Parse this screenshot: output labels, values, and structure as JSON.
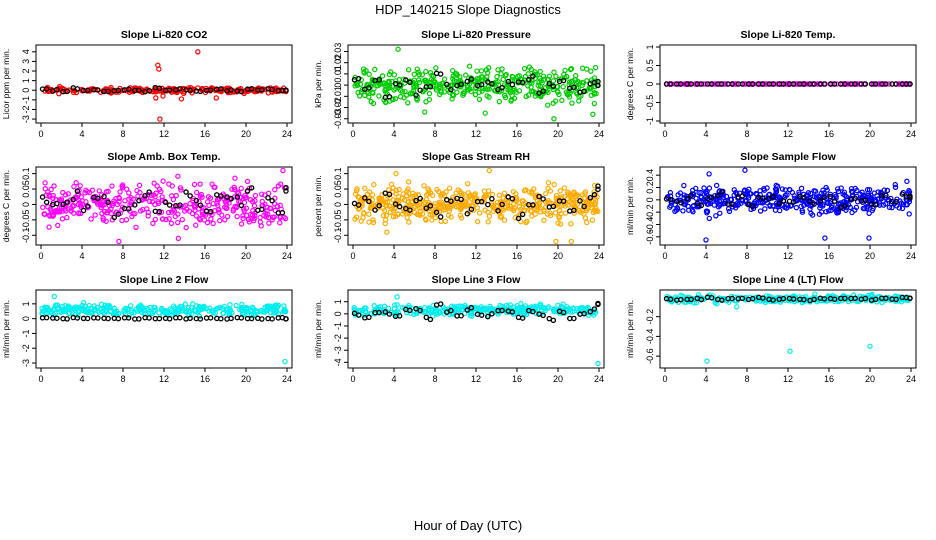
{
  "figure": {
    "title": "HDP_140215  Slope Diagnostics",
    "xlabel": "Hour of Day (UTC)"
  },
  "chart_data": [
    {
      "type": "scatter",
      "title": "Slope Li-820 CO2",
      "ylabel": "Licor ppm per min.",
      "xlim": [
        0,
        24
      ],
      "xticks": [
        0,
        4,
        8,
        12,
        16,
        20,
        24
      ],
      "ylim": [
        -3.2,
        4.5
      ],
      "yticks": [
        -3,
        -2,
        -1,
        0,
        1,
        2,
        3,
        4
      ],
      "color": "#ff0000",
      "noise": {
        "spread": 0.22,
        "count": 220,
        "seed": 11
      },
      "outliers": [
        [
          11.4,
          2.6
        ],
        [
          11.5,
          2.2
        ],
        [
          15.3,
          4.0
        ],
        [
          11.2,
          -0.8
        ],
        [
          13.7,
          -0.9
        ],
        [
          17.1,
          -0.8
        ],
        [
          11.6,
          -3.0
        ],
        [
          11.9,
          -0.6
        ]
      ],
      "daily": [
        0.1,
        0.0,
        -0.1,
        0.2,
        0.0,
        0.1,
        -0.1,
        0.0,
        0.1,
        0.0,
        -0.1,
        0.2,
        0.0,
        0.1,
        0.0,
        -0.1,
        0.0,
        0.1,
        0.0,
        -0.1,
        0.1,
        0.0,
        0.1,
        0.0,
        0.0
      ],
      "daily_spread": 0.15
    },
    {
      "type": "scatter",
      "title": "Slope Li-820 Pressure",
      "ylabel": "kPa per min.",
      "xlim": [
        0,
        24
      ],
      "xticks": [
        0,
        4,
        8,
        12,
        16,
        20,
        24
      ],
      "ylim": [
        -0.032,
        0.034
      ],
      "yticks": [
        -0.03,
        -0.02,
        -0.01,
        0.0,
        0.01,
        0.02,
        0.03
      ],
      "color": "#00cc00",
      "noise": {
        "spread": 0.012,
        "count": 420,
        "seed": 23
      },
      "outliers": [
        [
          4.4,
          0.032
        ],
        [
          19.6,
          -0.03
        ],
        [
          7.0,
          -0.024
        ],
        [
          23.4,
          -0.026
        ],
        [
          12.9,
          -0.025
        ]
      ],
      "daily": [
        0.004,
        -0.002,
        0.006,
        -0.008,
        0.002,
        0.004,
        -0.006,
        -0.004,
        0.008,
        -0.002,
        0.0,
        0.006,
        -0.002,
        0.004,
        -0.004,
        0.002,
        0.0,
        0.006,
        -0.006,
        0.002,
        0.004,
        -0.002,
        -0.004,
        0.004,
        0.002
      ],
      "daily_spread": 0.006
    },
    {
      "type": "scatter",
      "title": "Slope Li-820 Temp.",
      "ylabel": "degrees C per min.",
      "xlim": [
        0,
        24
      ],
      "xticks": [
        0,
        4,
        8,
        12,
        16,
        20,
        24
      ],
      "ylim": [
        -1.0,
        1.0
      ],
      "yticks": [
        -1.0,
        -0.5,
        0.0,
        0.5,
        1.0
      ],
      "color": "#ff00ff",
      "noise": {
        "spread": 0.0,
        "count": 160,
        "seed": 5
      },
      "outliers": [],
      "daily": [
        0.0,
        0.0,
        0.0,
        0.0,
        0.0,
        0.0,
        0.0,
        0.0,
        0.0,
        0.0,
        0.0,
        0.0,
        0.0,
        0.0,
        0.0,
        0.0,
        0.0,
        0.0,
        0.0,
        0.0,
        0.0,
        0.0,
        0.0,
        0.0,
        0.0
      ],
      "daily_spread": 0.0
    },
    {
      "type": "scatter",
      "title": "Slope Amb. Box Temp.",
      "ylabel": "degrees C per min.",
      "xlim": [
        0,
        24
      ],
      "xticks": [
        0,
        4,
        8,
        12,
        16,
        20,
        24
      ],
      "ylim": [
        -0.125,
        0.115
      ],
      "yticks": [
        -0.1,
        -0.05,
        0.0,
        0.05,
        0.1
      ],
      "color": "#ff00ff",
      "noise": {
        "spread": 0.055,
        "count": 380,
        "seed": 37
      },
      "outliers": [
        [
          23.6,
          0.11
        ],
        [
          7.6,
          -0.12
        ],
        [
          13.4,
          -0.11
        ],
        [
          0.4,
          0.07
        ]
      ],
      "daily": [
        0.02,
        -0.01,
        0.0,
        0.03,
        -0.02,
        0.01,
        0.02,
        -0.03,
        0.0,
        0.01,
        0.04,
        -0.02,
        0.01,
        -0.01,
        0.03,
        0.0,
        -0.02,
        0.02,
        0.03,
        0.01,
        0.04,
        -0.01,
        0.02,
        -0.03,
        0.05
      ],
      "daily_spread": 0.03
    },
    {
      "type": "scatter",
      "title": "Slope Gas Stream RH",
      "ylabel": "percent per min.",
      "xlim": [
        0,
        24
      ],
      "xticks": [
        0,
        4,
        8,
        12,
        16,
        20,
        24
      ],
      "ylim": [
        -0.125,
        0.115
      ],
      "yticks": [
        -0.1,
        -0.05,
        0.0,
        0.05,
        0.1
      ],
      "color": "#ffaa00",
      "noise": {
        "spread": 0.045,
        "count": 480,
        "seed": 41
      },
      "outliers": [
        [
          13.3,
          0.11
        ],
        [
          19.8,
          -0.12
        ],
        [
          21.3,
          -0.12
        ],
        [
          3.3,
          -0.09
        ],
        [
          4.2,
          0.1
        ]
      ],
      "daily": [
        0.0,
        0.02,
        -0.01,
        0.03,
        0.0,
        -0.02,
        0.01,
        0.0,
        -0.03,
        0.02,
        0.01,
        -0.02,
        0.0,
        0.01,
        -0.01,
        0.03,
        -0.04,
        0.0,
        0.02,
        -0.01,
        0.01,
        -0.02,
        0.0,
        0.03,
        0.06
      ],
      "daily_spread": 0.025
    },
    {
      "type": "scatter",
      "title": "Slope Sample Flow",
      "ylabel": "ml/min per min.",
      "xlim": [
        0,
        24
      ],
      "xticks": [
        0,
        4,
        8,
        12,
        16,
        20,
        24
      ],
      "ylim": [
        -0.7,
        0.5
      ],
      "yticks": [
        -0.6,
        -0.4,
        -0.2,
        0.0,
        0.2,
        0.4
      ],
      "color": "#0000ff",
      "noise": {
        "spread": 0.18,
        "count": 420,
        "seed": 53
      },
      "outliers": [
        [
          4.0,
          -0.65
        ],
        [
          4.3,
          0.42
        ],
        [
          7.8,
          0.48
        ],
        [
          15.6,
          -0.62
        ],
        [
          19.9,
          -0.62
        ],
        [
          23.6,
          0.3
        ]
      ],
      "daily": [
        0.0,
        -0.05,
        0.05,
        -0.1,
        0.0,
        0.1,
        -0.05,
        0.02,
        -0.08,
        0.0,
        0.05,
        -0.02,
        0.0,
        0.08,
        -0.05,
        0.0,
        0.02,
        -0.1,
        0.05,
        0.0,
        -0.05,
        0.1,
        0.0,
        0.05,
        0.08
      ],
      "daily_spread": 0.1
    },
    {
      "type": "scatter",
      "title": "Slope Line 2 Flow",
      "ylabel": "ml/min per min.",
      "xlim": [
        0,
        24
      ],
      "xticks": [
        0,
        4,
        8,
        12,
        16,
        20,
        24
      ],
      "ylim": [
        -3.2,
        1.8
      ],
      "yticks": [
        -3,
        -2,
        -1,
        0,
        1
      ],
      "color": "#00eeee",
      "noise": {
        "spread": 0.3,
        "count": 300,
        "seed": 67,
        "offset": 0.6
      },
      "outliers": [
        [
          23.8,
          -2.9
        ],
        [
          1.3,
          1.5
        ]
      ],
      "daily": [
        0.05,
        0.05,
        0.0,
        0.05,
        0.0,
        0.05,
        0.0,
        0.0,
        0.05,
        0.0,
        0.05,
        0.0,
        0.0,
        0.05,
        0.0,
        0.0,
        0.05,
        0.0,
        0.0,
        0.05,
        0.0,
        0.0,
        0.0,
        0.05,
        0.0
      ],
      "daily_spread": 0.05
    },
    {
      "type": "scatter",
      "title": "Slope Line 3 Flow",
      "ylabel": "ml/min per min.",
      "xlim": [
        0,
        24
      ],
      "xticks": [
        0,
        4,
        8,
        12,
        16,
        20,
        24
      ],
      "ylim": [
        -4.3,
        1.8
      ],
      "yticks": [
        -4,
        -3,
        -2,
        -1,
        0,
        1
      ],
      "color": "#00eeee",
      "noise": {
        "spread": 0.35,
        "count": 300,
        "seed": 71,
        "offset": 0.3
      },
      "outliers": [
        [
          23.9,
          -4.1
        ],
        [
          4.3,
          1.4
        ]
      ],
      "daily": [
        0.0,
        -0.2,
        0.2,
        0.1,
        -0.3,
        0.4,
        0.3,
        -0.4,
        0.8,
        0.2,
        -0.2,
        0.4,
        0.0,
        -0.1,
        0.3,
        0.1,
        -0.2,
        0.3,
        0.0,
        -0.4,
        0.2,
        -0.3,
        0.1,
        0.3,
        0.8
      ],
      "daily_spread": 0.3
    },
    {
      "type": "scatter",
      "title": "Slope Line 4 (LT) Flow",
      "ylabel": "ml/min per min.",
      "xlim": [
        0,
        24
      ],
      "xticks": [
        0,
        4,
        8,
        12,
        16,
        20,
        24
      ],
      "ylim": [
        -0.7,
        0.05
      ],
      "yticks": [
        -0.6,
        -0.4,
        -0.2
      ],
      "color": "#00eeee",
      "noise": {
        "spread": 0.03,
        "count": 300,
        "seed": 83,
        "offset": -0.02
      },
      "outliers": [
        [
          4.1,
          -0.65
        ],
        [
          12.2,
          -0.55
        ],
        [
          20.0,
          -0.5
        ],
        [
          7.0,
          -0.1
        ]
      ],
      "daily": [
        -0.02,
        -0.03,
        -0.02,
        -0.02,
        -0.01,
        -0.03,
        -0.02,
        -0.02,
        -0.02,
        -0.01,
        -0.03,
        -0.02,
        -0.02,
        -0.02,
        -0.03,
        -0.02,
        -0.02,
        -0.01,
        -0.02,
        -0.02,
        -0.03,
        -0.02,
        -0.02,
        -0.01,
        -0.02
      ],
      "daily_spread": 0.015
    }
  ]
}
